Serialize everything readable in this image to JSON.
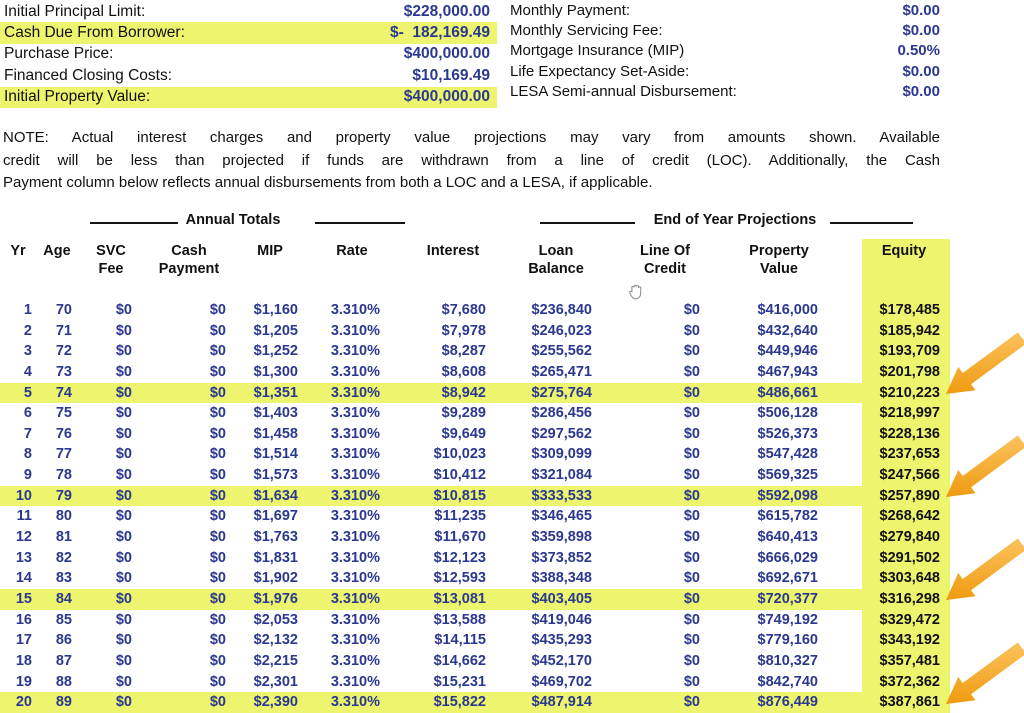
{
  "summary_left": {
    "rows": [
      {
        "label": "Initial Principal Limit:",
        "value": "$228,000.00",
        "highlight": false
      },
      {
        "label": "Cash Due From Borrower:",
        "value": "$-  182,169.49",
        "highlight": true
      },
      {
        "label": "Purchase Price:",
        "value": "$400,000.00",
        "highlight": false
      },
      {
        "label": "Financed Closing Costs:",
        "value": "$10,169.49",
        "highlight": false
      },
      {
        "label": "Initial Property Value:",
        "value": "$400,000.00",
        "highlight": true
      }
    ]
  },
  "summary_right": {
    "rows": [
      {
        "label": "Monthly Payment:",
        "value": "$0.00"
      },
      {
        "label": "Monthly Servicing Fee:",
        "value": "$0.00"
      },
      {
        "label": "Mortgage Insurance (MIP)",
        "value": "0.50%"
      },
      {
        "label": "Life Expectancy Set-Aside:",
        "value": "$0.00"
      },
      {
        "label": "LESA Semi-annual Disbursement:",
        "value": "$0.00"
      }
    ]
  },
  "note_lines": [
    "NOTE: Actual interest charges and property value projections may vary from amounts shown. Available",
    "credit will be less than projected if funds are withdrawn from a line of credit (LOC). Additionally, the Cash",
    "Payment column below reflects annual disbursements from both a LOC and a LESA, if applicable."
  ],
  "table": {
    "group_headers": [
      "Annual Totals",
      "End of Year Projections"
    ],
    "columns": [
      [
        "Yr"
      ],
      [
        "Age"
      ],
      [
        "SVC",
        "Fee"
      ],
      [
        "Cash",
        "Payment"
      ],
      [
        "MIP"
      ],
      [
        "Rate"
      ],
      [
        "Interest"
      ],
      [
        "Loan",
        "Balance"
      ],
      [
        "Line Of",
        "Credit"
      ],
      [
        "Property",
        "Value"
      ],
      [
        "Equity"
      ]
    ],
    "highlighted_rows": [
      5,
      10,
      15,
      20
    ],
    "rows": [
      [
        "1",
        "70",
        "$0",
        "$0",
        "$1,160",
        "3.310%",
        "$7,680",
        "$236,840",
        "$0",
        "$416,000",
        "$178,485"
      ],
      [
        "2",
        "71",
        "$0",
        "$0",
        "$1,205",
        "3.310%",
        "$7,978",
        "$246,023",
        "$0",
        "$432,640",
        "$185,942"
      ],
      [
        "3",
        "72",
        "$0",
        "$0",
        "$1,252",
        "3.310%",
        "$8,287",
        "$255,562",
        "$0",
        "$449,946",
        "$193,709"
      ],
      [
        "4",
        "73",
        "$0",
        "$0",
        "$1,300",
        "3.310%",
        "$8,608",
        "$265,471",
        "$0",
        "$467,943",
        "$201,798"
      ],
      [
        "5",
        "74",
        "$0",
        "$0",
        "$1,351",
        "3.310%",
        "$8,942",
        "$275,764",
        "$0",
        "$486,661",
        "$210,223"
      ],
      [
        "6",
        "75",
        "$0",
        "$0",
        "$1,403",
        "3.310%",
        "$9,289",
        "$286,456",
        "$0",
        "$506,128",
        "$218,997"
      ],
      [
        "7",
        "76",
        "$0",
        "$0",
        "$1,458",
        "3.310%",
        "$9,649",
        "$297,562",
        "$0",
        "$526,373",
        "$228,136"
      ],
      [
        "8",
        "77",
        "$0",
        "$0",
        "$1,514",
        "3.310%",
        "$10,023",
        "$309,099",
        "$0",
        "$547,428",
        "$237,653"
      ],
      [
        "9",
        "78",
        "$0",
        "$0",
        "$1,573",
        "3.310%",
        "$10,412",
        "$321,084",
        "$0",
        "$569,325",
        "$247,566"
      ],
      [
        "10",
        "79",
        "$0",
        "$0",
        "$1,634",
        "3.310%",
        "$10,815",
        "$333,533",
        "$0",
        "$592,098",
        "$257,890"
      ],
      [
        "11",
        "80",
        "$0",
        "$0",
        "$1,697",
        "3.310%",
        "$11,235",
        "$346,465",
        "$0",
        "$615,782",
        "$268,642"
      ],
      [
        "12",
        "81",
        "$0",
        "$0",
        "$1,763",
        "3.310%",
        "$11,670",
        "$359,898",
        "$0",
        "$640,413",
        "$279,840"
      ],
      [
        "13",
        "82",
        "$0",
        "$0",
        "$1,831",
        "3.310%",
        "$12,123",
        "$373,852",
        "$0",
        "$666,029",
        "$291,502"
      ],
      [
        "14",
        "83",
        "$0",
        "$0",
        "$1,902",
        "3.310%",
        "$12,593",
        "$388,348",
        "$0",
        "$692,671",
        "$303,648"
      ],
      [
        "15",
        "84",
        "$0",
        "$0",
        "$1,976",
        "3.310%",
        "$13,081",
        "$403,405",
        "$0",
        "$720,377",
        "$316,298"
      ],
      [
        "16",
        "85",
        "$0",
        "$0",
        "$2,053",
        "3.310%",
        "$13,588",
        "$419,046",
        "$0",
        "$749,192",
        "$329,472"
      ],
      [
        "17",
        "86",
        "$0",
        "$0",
        "$2,132",
        "3.310%",
        "$14,115",
        "$435,293",
        "$0",
        "$779,160",
        "$343,192"
      ],
      [
        "18",
        "87",
        "$0",
        "$0",
        "$2,215",
        "3.310%",
        "$14,662",
        "$452,170",
        "$0",
        "$810,327",
        "$357,481"
      ],
      [
        "19",
        "88",
        "$0",
        "$0",
        "$2,301",
        "3.310%",
        "$15,231",
        "$469,702",
        "$0",
        "$842,740",
        "$372,362"
      ],
      [
        "20",
        "89",
        "$0",
        "$0",
        "$2,390",
        "3.310%",
        "$15,822",
        "$487,914",
        "$0",
        "$876,449",
        "$387,861"
      ]
    ]
  },
  "annotations": {
    "arrow_count": 4,
    "arrow_target_rows": [
      5,
      10,
      15,
      20
    ]
  },
  "cursor": {
    "icon": "hand-grab-cursor"
  },
  "colors": {
    "highlight": "#edf46d",
    "value_text": "#2b3890",
    "arrow_light": "#fbc express",
    "arrow": "#f5a42b",
    "arrow_dark": "#ef9b10"
  }
}
